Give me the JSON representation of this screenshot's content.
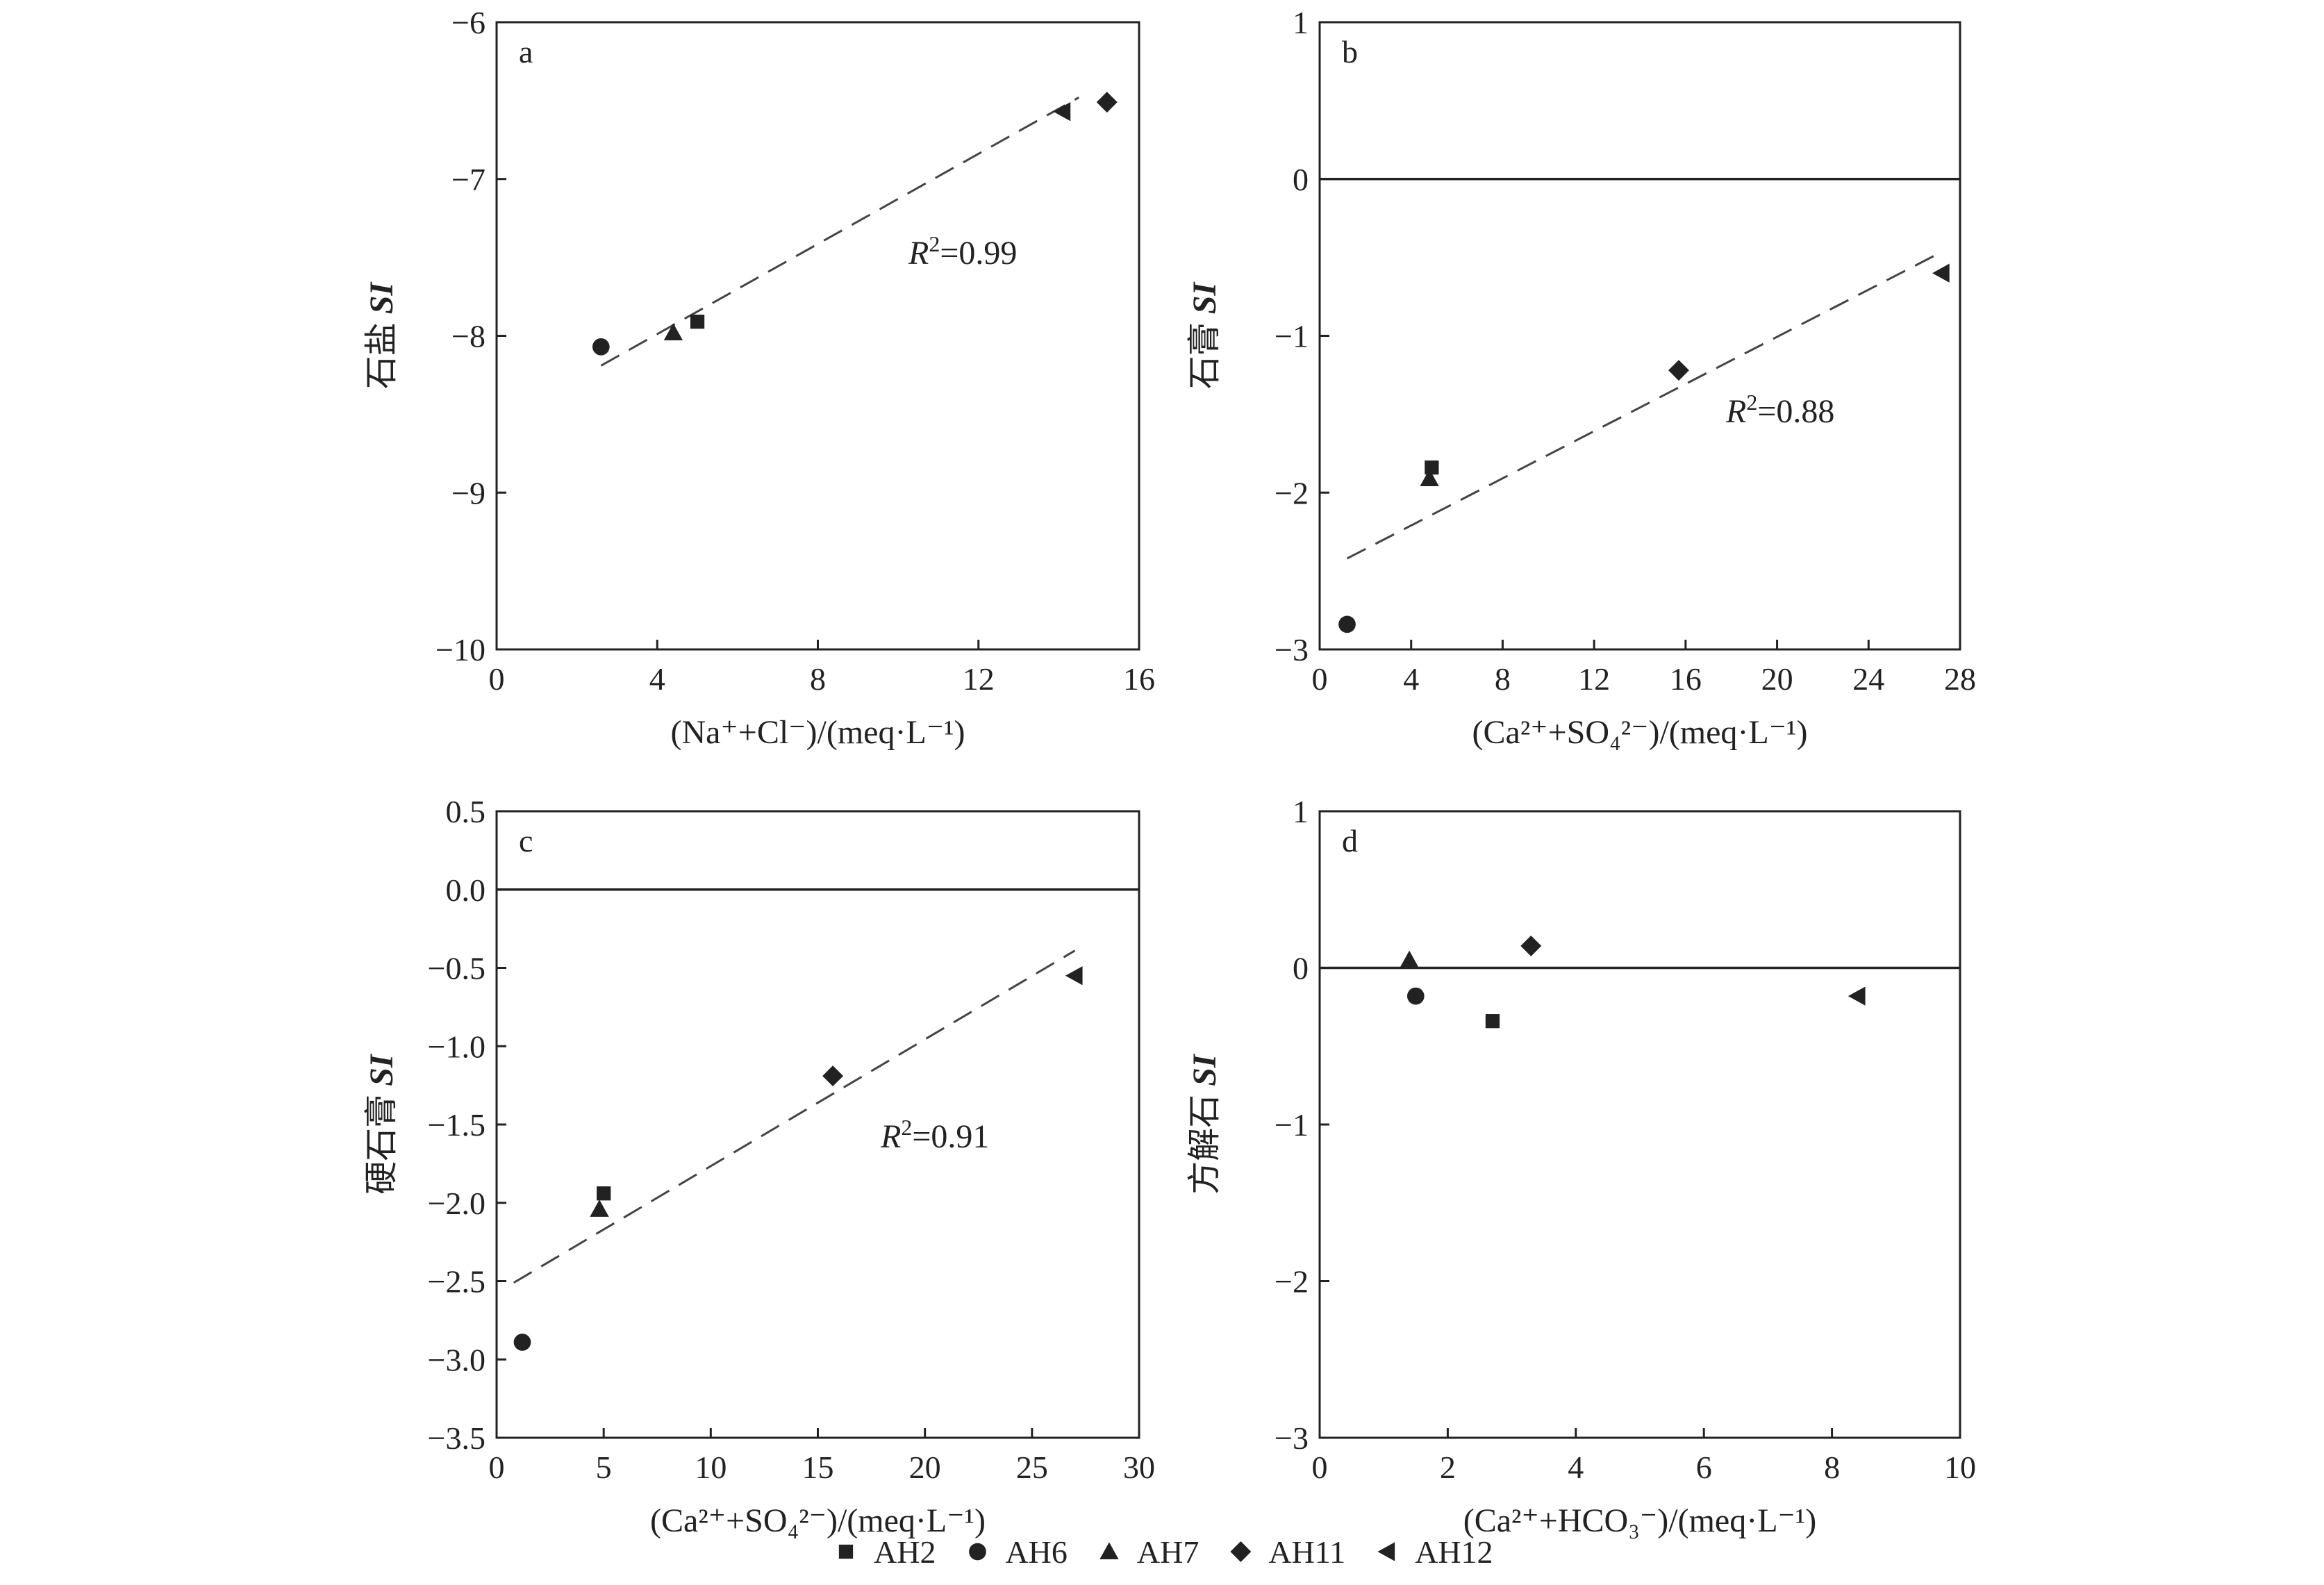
{
  "legend": [
    {
      "marker": "square",
      "label": "AH2"
    },
    {
      "marker": "circle",
      "label": "AH6"
    },
    {
      "marker": "triangle",
      "label": "AH7"
    },
    {
      "marker": "diamond",
      "label": "AH11"
    },
    {
      "marker": "left-triangle",
      "label": "AH12"
    }
  ],
  "colors": {
    "marker": "#222222",
    "axis": "#222222",
    "fit_line": "#444444"
  },
  "chart_data": [
    {
      "panel": "a",
      "type": "scatter",
      "xlabel": "(Na⁺+Cl⁻)/(meq·L⁻¹)",
      "ylabel_prefix": "石盐 ",
      "ylabel_italic": "SI",
      "xlim": [
        0,
        16
      ],
      "ylim": [
        -10,
        -6
      ],
      "xticks": [
        0,
        4,
        8,
        12,
        16
      ],
      "yticks": [
        -10,
        -9,
        -8,
        -7,
        -6
      ],
      "xtick_labels": [
        "0",
        "4",
        "8",
        "12",
        "16"
      ],
      "ytick_labels": [
        "−10",
        "−9",
        "−8",
        "−7",
        "−6"
      ],
      "zero_line": false,
      "r2_text": "=0.99",
      "fit_line": [
        [
          2.6,
          -8.19
        ],
        [
          14.5,
          -6.48
        ]
      ],
      "points": [
        {
          "sample": "AH2",
          "marker": "square",
          "x": 5.0,
          "y": -7.91
        },
        {
          "sample": "AH6",
          "marker": "circle",
          "x": 2.6,
          "y": -8.07
        },
        {
          "sample": "AH7",
          "marker": "triangle",
          "x": 4.4,
          "y": -7.98
        },
        {
          "sample": "AH11",
          "marker": "diamond",
          "x": 15.2,
          "y": -6.51
        },
        {
          "sample": "AH12",
          "marker": "left-triangle",
          "x": 14.1,
          "y": -6.57
        }
      ]
    },
    {
      "panel": "b",
      "type": "scatter",
      "xlabel": "(Ca²⁺+SO₄²⁻)/(meq·L⁻¹)",
      "ylabel_prefix": "石膏 ",
      "ylabel_italic": "SI",
      "xlim": [
        0,
        28
      ],
      "ylim": [
        -3,
        1
      ],
      "xticks": [
        0,
        4,
        8,
        12,
        16,
        20,
        24,
        28
      ],
      "yticks": [
        -3,
        -2,
        -1,
        0,
        1
      ],
      "xtick_labels": [
        "0",
        "4",
        "8",
        "12",
        "16",
        "20",
        "24",
        "28"
      ],
      "ytick_labels": [
        "−3",
        "−2",
        "−1",
        "0",
        "1"
      ],
      "zero_line": true,
      "r2_text": "=0.88",
      "fit_line": [
        [
          1.2,
          -2.42
        ],
        [
          27.0,
          -0.48
        ]
      ],
      "points": [
        {
          "sample": "AH2",
          "marker": "square",
          "x": 4.9,
          "y": -1.84
        },
        {
          "sample": "AH6",
          "marker": "circle",
          "x": 1.2,
          "y": -2.84
        },
        {
          "sample": "AH7",
          "marker": "triangle",
          "x": 4.8,
          "y": -1.91
        },
        {
          "sample": "AH11",
          "marker": "diamond",
          "x": 15.7,
          "y": -1.22
        },
        {
          "sample": "AH12",
          "marker": "left-triangle",
          "x": 27.2,
          "y": -0.6
        }
      ]
    },
    {
      "panel": "c",
      "type": "scatter",
      "xlabel": "(Ca²⁺+SO₄²⁻)/(meq·L⁻¹)",
      "ylabel_prefix": "硬石膏 ",
      "ylabel_italic": "SI",
      "xlim": [
        0,
        30
      ],
      "ylim": [
        -3.5,
        0.5
      ],
      "xticks": [
        0,
        5,
        10,
        15,
        20,
        25,
        30
      ],
      "yticks": [
        -3.5,
        -3.0,
        -2.5,
        -2.0,
        -1.5,
        -1.0,
        -0.5,
        0.0,
        0.5
      ],
      "xtick_labels": [
        "0",
        "5",
        "10",
        "15",
        "20",
        "25",
        "30"
      ],
      "ytick_labels": [
        "−3.5",
        "−3.0",
        "−2.5",
        "−2.0",
        "−1.5",
        "−1.0",
        "−0.5",
        "0.0",
        "0.5"
      ],
      "zero_line": true,
      "r2_text": "=0.91",
      "fit_line": [
        [
          0.8,
          -2.51
        ],
        [
          27.0,
          -0.39
        ]
      ],
      "points": [
        {
          "sample": "AH2",
          "marker": "square",
          "x": 5.0,
          "y": -1.94
        },
        {
          "sample": "AH6",
          "marker": "circle",
          "x": 1.2,
          "y": -2.89
        },
        {
          "sample": "AH7",
          "marker": "triangle",
          "x": 4.8,
          "y": -2.04
        },
        {
          "sample": "AH11",
          "marker": "diamond",
          "x": 15.7,
          "y": -1.19
        },
        {
          "sample": "AH12",
          "marker": "left-triangle",
          "x": 27.0,
          "y": -0.55
        }
      ]
    },
    {
      "panel": "d",
      "type": "scatter",
      "xlabel": "(Ca²⁺+HCO₃⁻)/(meq·L⁻¹)",
      "ylabel_prefix": "方解石 ",
      "ylabel_italic": "SI",
      "xlim": [
        0,
        10
      ],
      "ylim": [
        -3,
        1
      ],
      "xticks": [
        0,
        2,
        4,
        6,
        8,
        10
      ],
      "yticks": [
        -3,
        -2,
        -1,
        0,
        1
      ],
      "xtick_labels": [
        "0",
        "2",
        "4",
        "6",
        "8",
        "10"
      ],
      "ytick_labels": [
        "−3",
        "−2",
        "−1",
        "0",
        "1"
      ],
      "zero_line": true,
      "r2_text": "",
      "fit_line": null,
      "points": [
        {
          "sample": "AH2",
          "marker": "square",
          "x": 2.7,
          "y": -0.34
        },
        {
          "sample": "AH6",
          "marker": "circle",
          "x": 1.5,
          "y": -0.18
        },
        {
          "sample": "AH7",
          "marker": "triangle",
          "x": 1.4,
          "y": 0.05
        },
        {
          "sample": "AH11",
          "marker": "diamond",
          "x": 3.3,
          "y": 0.14
        },
        {
          "sample": "AH12",
          "marker": "left-triangle",
          "x": 8.4,
          "y": -0.18
        }
      ]
    }
  ]
}
